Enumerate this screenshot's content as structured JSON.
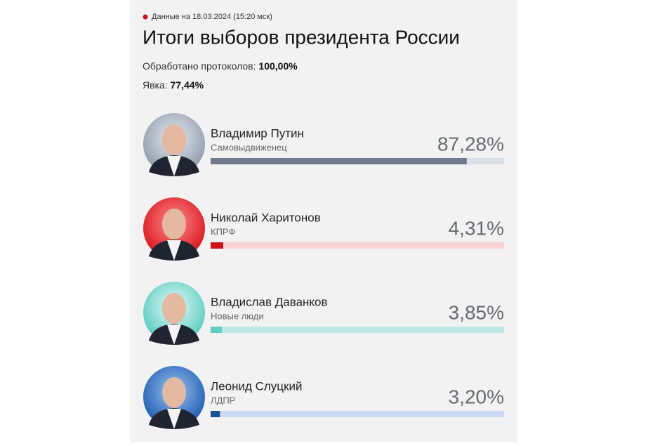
{
  "chart_data": {
    "type": "bar",
    "orientation": "horizontal",
    "note": "Данные на 18.03.2024 (15:20 мск)",
    "title": "Итоги выборов президента России",
    "stats": [
      {
        "label": "Обработано протоколов:",
        "value": "100,00%"
      },
      {
        "label": "Явка:",
        "value": "77,44%"
      }
    ],
    "categories": [
      "Владимир Путин",
      "Николай Харитонов",
      "Владислав Даванков",
      "Леонид Слуцкий"
    ],
    "subtitles": [
      "Самовыдвиженец",
      "КПРФ",
      "Новые люди",
      "ЛДПР"
    ],
    "values": [
      87.28,
      4.31,
      3.85,
      3.2
    ],
    "value_labels": [
      "87,28%",
      "4,31%",
      "3,85%",
      "3,20%"
    ],
    "colors": [
      "#6f7b8d",
      "#c8141a",
      "#5fcfc5",
      "#1b4f98"
    ],
    "track_colors": [
      "#d9dfe7",
      "#f8d4d5",
      "#bfe9e5",
      "#cadcf5"
    ],
    "xlim": [
      0,
      100
    ]
  }
}
